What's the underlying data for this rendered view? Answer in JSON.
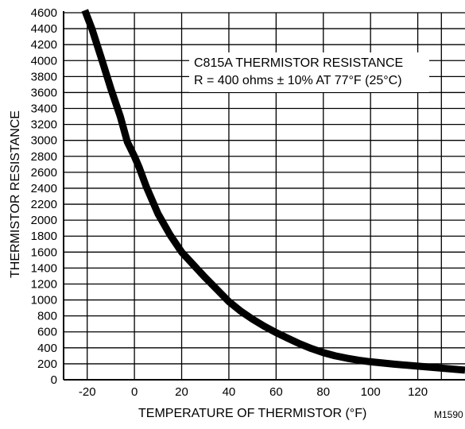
{
  "chart_data": {
    "type": "line",
    "title": "C815A THERMISTOR RESISTANCE",
    "subtitle": "R = 400 ohms ± 10% AT 77°F (25°C)",
    "xlabel": "TEMPERATURE OF THERMISTOR (°F)",
    "ylabel": "THERMISTOR RESISTANCE",
    "figure_code": "M1590",
    "xlim": [
      -30,
      140
    ],
    "ylim": [
      0,
      4600
    ],
    "x_ticks": [
      -20,
      0,
      20,
      40,
      60,
      80,
      100,
      120
    ],
    "x_tick_labels": [
      "-20",
      "0",
      "20",
      "40",
      "60",
      "80",
      "100",
      "120"
    ],
    "y_ticks": [
      0,
      200,
      400,
      600,
      800,
      1000,
      1200,
      1400,
      1600,
      1800,
      2000,
      2200,
      2400,
      2600,
      2800,
      3000,
      3200,
      3400,
      3600,
      3800,
      4000,
      4200,
      4400,
      4600
    ],
    "y_tick_labels": [
      "0",
      "200",
      "400",
      "600",
      "800",
      "1000",
      "1200",
      "1400",
      "1600",
      "1800",
      "2000",
      "2200",
      "2400",
      "2600",
      "2800",
      "3000",
      "3200",
      "3400",
      "3600",
      "3800",
      "4000",
      "4200",
      "4400",
      "4600"
    ],
    "grid": true,
    "legend_position": "top-right",
    "line_color": "#000000",
    "series": [
      {
        "x": [
          -21,
          -18,
          -14,
          -10,
          -6,
          -3,
          0,
          2,
          5,
          10,
          15,
          20,
          25,
          30,
          35,
          40,
          45,
          50,
          55,
          60,
          65,
          70,
          75,
          80,
          85,
          90,
          95,
          100,
          110,
          120,
          130,
          140
        ],
        "y": [
          4630,
          4400,
          4030,
          3650,
          3300,
          2980,
          2800,
          2660,
          2420,
          2080,
          1820,
          1600,
          1440,
          1280,
          1130,
          980,
          860,
          760,
          670,
          590,
          520,
          450,
          390,
          340,
          300,
          270,
          245,
          225,
          195,
          170,
          145,
          120
        ]
      }
    ]
  }
}
